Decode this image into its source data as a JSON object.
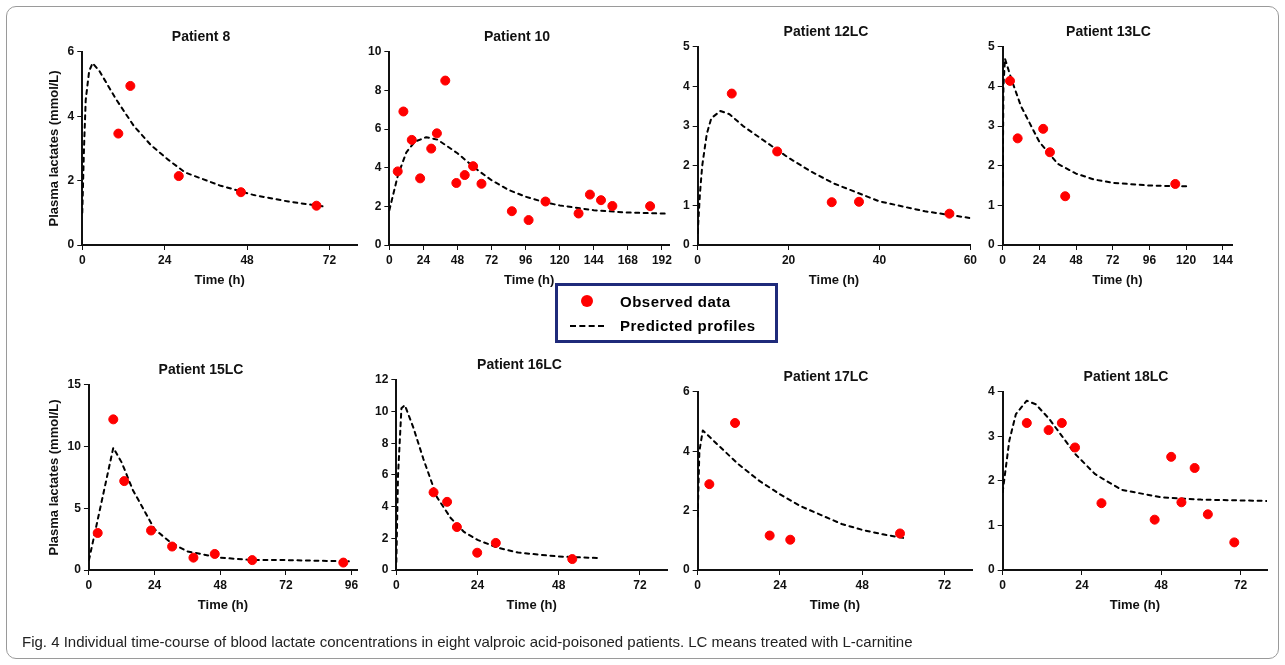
{
  "chart_data": [
    {
      "type": "scatter",
      "title": "Patient 8",
      "xlabel": "Time (h)",
      "ylabel": "Plasma lactates (mmol/L)",
      "xlim": [
        0,
        80
      ],
      "xticks": [
        0,
        24,
        48,
        72
      ],
      "ylim": [
        0,
        6
      ],
      "yticks": [
        0,
        2,
        4,
        6
      ],
      "grid": false,
      "legend": "bottom",
      "annotations": [
        "Fig. 4  Individual time-course of blood lactate concentrations in eight valproic acid-poisoned patients. LC means treated with L-carnitine"
      ],
      "series": [
        {
          "name": "Observed data",
          "type": "scatter",
          "color": "#ff0000",
          "marker": "circle",
          "x": [
            10.5,
            14.0,
            28.1,
            46.2,
            68.2
          ],
          "values": [
            3.46,
            4.94,
            2.14,
            1.64,
            1.22
          ]
        },
        {
          "name": "Predicted profiles",
          "type": "line",
          "color": "#000000",
          "marker": "none",
          "line_style": "dashed",
          "x": [
            0,
            0.5,
            1,
            2,
            3,
            5,
            10,
            15,
            20,
            25,
            30,
            40,
            50,
            60,
            70
          ],
          "values": [
            1.0,
            3.0,
            4.5,
            5.4,
            5.65,
            5.4,
            4.5,
            3.7,
            3.1,
            2.65,
            2.25,
            1.85,
            1.55,
            1.35,
            1.2
          ]
        }
      ]
    },
    {
      "type": "scatter",
      "title": "Patient 10",
      "xlabel": "Time (h)",
      "xlim": [
        0,
        197
      ],
      "xticks": [
        0,
        24,
        48,
        72,
        96,
        120,
        144,
        168,
        192
      ],
      "ylim": [
        0,
        10
      ],
      "yticks": [
        0,
        2,
        4,
        6,
        8,
        10
      ],
      "grid": false,
      "series": [
        {
          "type": "scatter",
          "color": "#ff0000",
          "marker": "circle",
          "x": [
            5.9,
            9.9,
            15.8,
            21.7,
            29.5,
            33.5,
            39.4,
            47.2,
            53.1,
            59.0,
            64.9,
            86.3,
            98.1,
            110.0,
            133.3,
            141.3,
            149.1,
            157.1,
            183.7
          ],
          "values": [
            3.81,
            6.91,
            5.44,
            3.45,
            4.99,
            5.78,
            8.51,
            3.21,
            3.62,
            4.08,
            3.17,
            1.75,
            1.29,
            2.25,
            1.63,
            2.61,
            2.32,
            2.02,
            2.01
          ]
        },
        {
          "type": "line",
          "color": "#000000",
          "marker": "none",
          "line_style": "dashed",
          "x": [
            0,
            6,
            12,
            18,
            26,
            34,
            48,
            60,
            72,
            84,
            96,
            110,
            120,
            144,
            168,
            196
          ],
          "values": [
            1.8,
            3.6,
            4.8,
            5.35,
            5.58,
            5.45,
            4.75,
            4.0,
            3.35,
            2.85,
            2.5,
            2.2,
            2.05,
            1.8,
            1.68,
            1.62
          ]
        }
      ]
    },
    {
      "type": "scatter",
      "title": "Patient 12LC",
      "xlabel": "Time (h)",
      "xlim": [
        0,
        60
      ],
      "xticks": [
        0,
        20,
        40,
        60
      ],
      "ylim": [
        0,
        5
      ],
      "yticks": [
        0,
        1,
        2,
        3,
        4,
        5
      ],
      "grid": false,
      "series": [
        {
          "type": "scatter",
          "color": "#ff0000",
          "marker": "circle",
          "x": [
            7.5,
            17.5,
            29.5,
            35.5,
            55.4
          ],
          "values": [
            3.82,
            2.36,
            1.08,
            1.09,
            0.79
          ]
        },
        {
          "type": "line",
          "color": "#000000",
          "marker": "none",
          "line_style": "dashed",
          "x": [
            0,
            0.5,
            1,
            2,
            3,
            5,
            7,
            10,
            15,
            20,
            25,
            30,
            40,
            50,
            60
          ],
          "values": [
            0.3,
            1.3,
            2.0,
            2.8,
            3.2,
            3.38,
            3.3,
            3.0,
            2.6,
            2.2,
            1.85,
            1.55,
            1.1,
            0.85,
            0.68
          ]
        }
      ]
    },
    {
      "type": "scatter",
      "title": "Patient 13LC",
      "xlabel": "Time (h)",
      "xlim": [
        0,
        150
      ],
      "xticks": [
        0,
        24,
        48,
        72,
        96,
        120,
        144
      ],
      "ylim": [
        0,
        5
      ],
      "yticks": [
        0,
        1,
        2,
        3,
        4,
        5
      ],
      "grid": false,
      "series": [
        {
          "type": "scatter",
          "color": "#ff0000",
          "marker": "circle",
          "x": [
            4.8,
            9.8,
            26.5,
            30.9,
            40.9,
            112.9
          ],
          "values": [
            4.14,
            2.69,
            2.93,
            2.34,
            1.23,
            1.54
          ]
        },
        {
          "type": "line",
          "color": "#000000",
          "marker": "none",
          "line_style": "dashed",
          "x": [
            0,
            0.5,
            1.5,
            6,
            12,
            24,
            36,
            48,
            60,
            72,
            96,
            120
          ],
          "values": [
            1.5,
            4.0,
            4.7,
            4.15,
            3.5,
            2.6,
            2.05,
            1.8,
            1.65,
            1.57,
            1.5,
            1.48
          ]
        }
      ]
    },
    {
      "type": "scatter",
      "title": "Patient 15LC",
      "xlabel": "Time (h)",
      "ylabel": "Plasma lactates (mmol/L)",
      "xlim": [
        0,
        98
      ],
      "xticks": [
        0,
        24,
        48,
        72,
        96
      ],
      "ylim": [
        0,
        15
      ],
      "yticks": [
        0,
        5,
        10,
        15
      ],
      "grid": false,
      "series": [
        {
          "type": "scatter",
          "color": "#ff0000",
          "marker": "circle",
          "x": [
            3.2,
            8.9,
            12.9,
            22.7,
            30.4,
            38.2,
            46.0,
            59.7,
            93.0
          ],
          "values": [
            3.0,
            12.2,
            7.2,
            3.2,
            1.9,
            1.0,
            1.3,
            0.8,
            0.6
          ]
        },
        {
          "type": "line",
          "color": "#000000",
          "marker": "none",
          "line_style": "dashed",
          "x": [
            0,
            8.9,
            12,
            16,
            24,
            30,
            36,
            48,
            60,
            72,
            95
          ],
          "values": [
            0.8,
            9.9,
            8.7,
            6.5,
            3.3,
            2.2,
            1.5,
            1.0,
            0.8,
            0.8,
            0.7
          ]
        }
      ]
    },
    {
      "type": "scatter",
      "title": "Patient 16LC",
      "xlabel": "Time (h)",
      "xlim": [
        0,
        80
      ],
      "xticks": [
        0,
        24,
        48,
        72
      ],
      "ylim": [
        0,
        12
      ],
      "yticks": [
        0,
        2,
        4,
        6,
        8,
        10,
        12
      ],
      "grid": false,
      "series": [
        {
          "type": "scatter",
          "color": "#ff0000",
          "marker": "circle",
          "x": [
            11.0,
            15.0,
            17.9,
            23.9,
            29.4,
            52.0
          ],
          "values": [
            4.9,
            4.3,
            2.71,
            1.09,
            1.71,
            0.69
          ]
        },
        {
          "type": "line",
          "color": "#000000",
          "marker": "none",
          "line_style": "dashed",
          "x": [
            0,
            0.5,
            1.5,
            2.5,
            5,
            8,
            12,
            16,
            20,
            24,
            30,
            36,
            48,
            60
          ],
          "values": [
            0.5,
            6.0,
            10.2,
            10.4,
            9.0,
            7.0,
            4.6,
            3.3,
            2.4,
            1.9,
            1.4,
            1.1,
            0.85,
            0.75
          ]
        }
      ]
    },
    {
      "type": "scatter",
      "title": "Patient 17LC",
      "xlabel": "Time (h)",
      "xlim": [
        0,
        80
      ],
      "xticks": [
        0,
        24,
        48,
        72
      ],
      "ylim": [
        0,
        6
      ],
      "yticks": [
        0,
        2,
        4,
        6
      ],
      "grid": false,
      "series": [
        {
          "type": "scatter",
          "color": "#ff0000",
          "marker": "circle",
          "x": [
            3.4,
            10.9,
            21.0,
            27.0,
            59.0
          ],
          "values": [
            2.89,
            4.95,
            1.16,
            1.02,
            1.23
          ]
        },
        {
          "type": "line",
          "color": "#000000",
          "marker": "none",
          "line_style": "dashed",
          "x": [
            0,
            0.5,
            1.5,
            6,
            12,
            18,
            24,
            30,
            36,
            42,
            48,
            54,
            60
          ],
          "values": [
            1.8,
            4.0,
            4.7,
            4.2,
            3.55,
            3.0,
            2.55,
            2.15,
            1.85,
            1.55,
            1.35,
            1.2,
            1.08
          ]
        }
      ]
    },
    {
      "type": "scatter",
      "title": "Patient 18LC",
      "xlabel": "Time (h)",
      "xlim": [
        0,
        80
      ],
      "xticks": [
        0,
        24,
        48,
        72
      ],
      "ylim": [
        0,
        4
      ],
      "yticks": [
        0,
        1,
        2,
        3,
        4
      ],
      "grid": false,
      "series": [
        {
          "type": "scatter",
          "color": "#ff0000",
          "marker": "circle",
          "x": [
            7.3,
            13.9,
            17.9,
            21.9,
            29.9,
            46.0,
            51.0,
            54.1,
            58.1,
            62.1,
            70.1
          ],
          "values": [
            3.3,
            3.14,
            3.3,
            2.75,
            1.5,
            1.13,
            2.54,
            1.52,
            2.29,
            1.25,
            0.62
          ]
        },
        {
          "type": "line",
          "color": "#000000",
          "marker": "none",
          "line_style": "dashed",
          "x": [
            0,
            2,
            4,
            7.3,
            10,
            14,
            18,
            22,
            28,
            36,
            48,
            60,
            80
          ],
          "values": [
            1.75,
            2.9,
            3.5,
            3.8,
            3.72,
            3.4,
            3.0,
            2.6,
            2.15,
            1.8,
            1.63,
            1.58,
            1.55
          ]
        }
      ]
    }
  ]
}
